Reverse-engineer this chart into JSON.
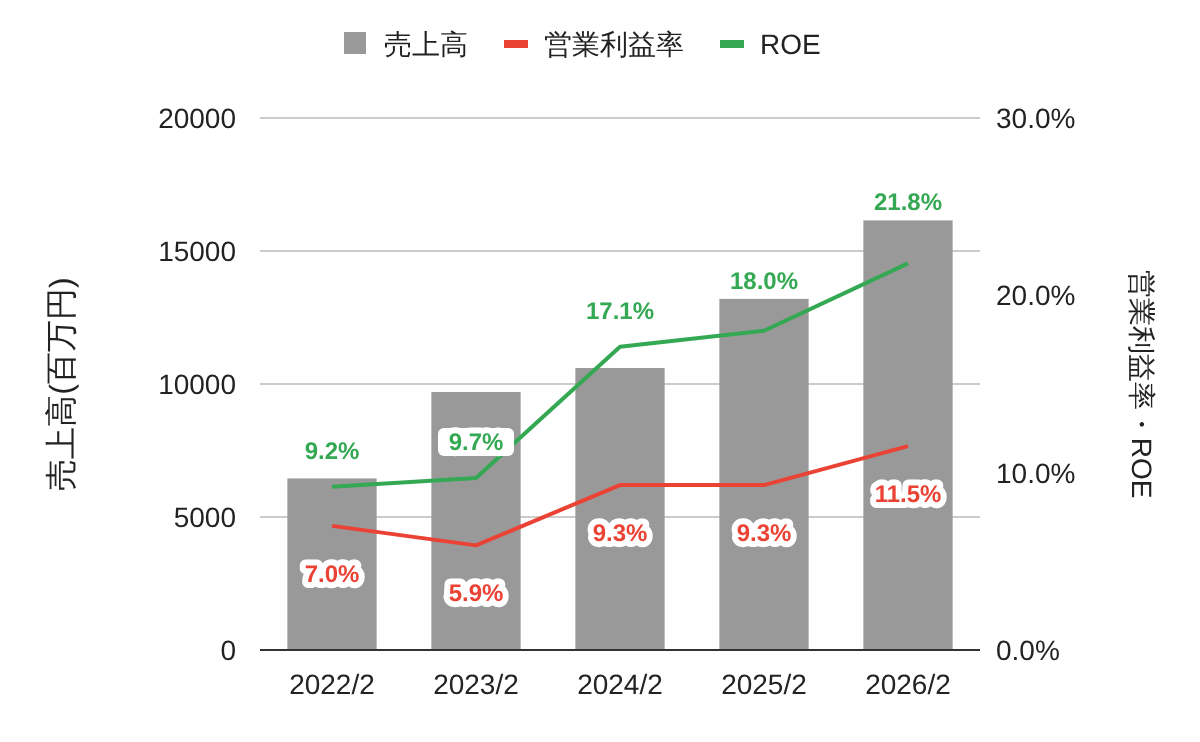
{
  "chart_data": {
    "type": "bar",
    "ylabel": "売上高(百万円)",
    "y2label": "営業利益率・ROE",
    "categories": [
      "2022/2",
      "2023/2",
      "2024/2",
      "2025/2",
      "2026/2"
    ],
    "series": [
      {
        "name": "売上高",
        "type": "bar",
        "color": "#999999",
        "values": [
          6450,
          9700,
          10600,
          13200,
          16150
        ]
      },
      {
        "name": "営業利益率",
        "type": "line",
        "axis": "y2",
        "color": "#ea4335",
        "values": [
          7.0,
          5.9,
          9.3,
          9.3,
          11.5
        ],
        "value_labels": [
          "7.0%",
          "5.9%",
          "9.3%",
          "9.3%",
          "11.5%"
        ]
      },
      {
        "name": "ROE",
        "type": "line",
        "axis": "y2",
        "color": "#34a853",
        "values": [
          9.2,
          9.7,
          17.1,
          18.0,
          21.8
        ],
        "value_labels": [
          "9.2%",
          "9.7%",
          "17.1%",
          "18.0%",
          "21.8%"
        ]
      }
    ],
    "ylim": [
      0,
      20000
    ],
    "yticks": [
      0,
      5000,
      10000,
      15000,
      20000
    ],
    "y2lim": [
      0,
      30
    ],
    "y2ticks": [
      {
        "value": 0,
        "label": "0.0%"
      },
      {
        "value": 10,
        "label": "10.0%"
      },
      {
        "value": 20,
        "label": "20.0%"
      },
      {
        "value": 30,
        "label": "30.0%"
      }
    ],
    "grid": "y",
    "legend": "top"
  }
}
